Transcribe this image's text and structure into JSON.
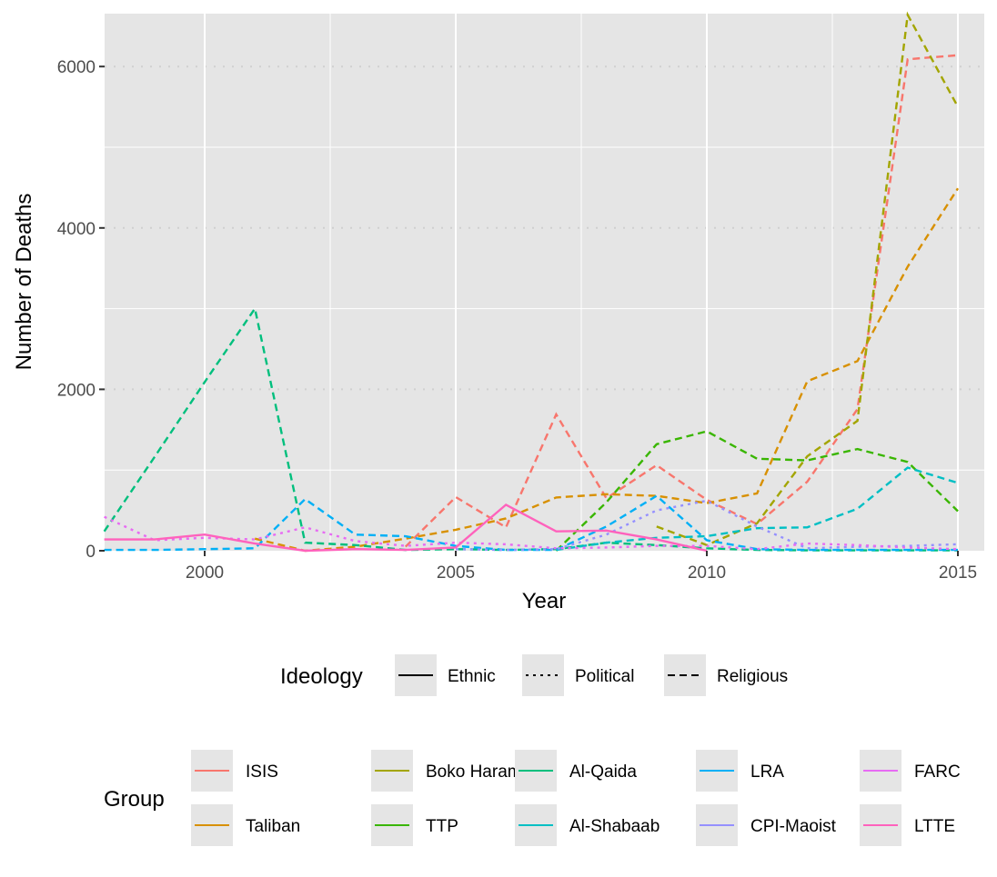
{
  "chart_data": {
    "type": "line",
    "title": "",
    "xlabel": "Year",
    "ylabel": "Number of Deaths",
    "xlim": [
      1998,
      2015.5
    ],
    "ylim": [
      0,
      6650
    ],
    "x_ticks": [
      2000,
      2005,
      2010,
      2015
    ],
    "y_ticks": [
      0,
      2000,
      4000,
      6000
    ],
    "grid": true,
    "legend_position": "bottom",
    "ideology_legend": {
      "title": "Ideology",
      "entries": [
        {
          "label": "Ethnic",
          "linetype": "solid"
        },
        {
          "label": "Political",
          "linetype": "dotted"
        },
        {
          "label": "Religious",
          "linetype": "dashed"
        }
      ]
    },
    "group_legend_title": "Group",
    "series": [
      {
        "name": "ISIS",
        "color": "#F8766D",
        "ideology": "Religious",
        "x": [
          2004,
          2005,
          2006,
          2007,
          2008,
          2009,
          2010,
          2011,
          2012,
          2013,
          2014,
          2015
        ],
        "values": [
          50,
          665,
          290,
          1690,
          650,
          1060,
          630,
          330,
          855,
          1755,
          6090,
          6140
        ]
      },
      {
        "name": "Taliban",
        "color": "#D89000",
        "ideology": "Religious",
        "x": [
          2001,
          2002,
          2003,
          2004,
          2005,
          2006,
          2007,
          2008,
          2009,
          2010,
          2011,
          2012,
          2013,
          2014,
          2015
        ],
        "values": [
          150,
          0,
          50,
          150,
          260,
          400,
          660,
          700,
          680,
          590,
          710,
          2100,
          2350,
          3520,
          4490
        ]
      },
      {
        "name": "Boko Haram",
        "color": "#A3A500",
        "ideology": "Religious",
        "x": [
          2009,
          2010,
          2011,
          2012,
          2013,
          2014,
          2015
        ],
        "values": [
          300,
          70,
          340,
          1170,
          1610,
          6640,
          5500
        ]
      },
      {
        "name": "TTP",
        "color": "#39B600",
        "ideology": "Religious",
        "x": [
          2007,
          2008,
          2009,
          2010,
          2011,
          2012,
          2013,
          2014,
          2015
        ],
        "values": [
          0,
          600,
          1320,
          1480,
          1140,
          1120,
          1260,
          1100,
          490
        ]
      },
      {
        "name": "Al-Qaida",
        "color": "#00BF7D",
        "ideology": "Religious",
        "x": [
          1998,
          1999,
          2000,
          2001,
          2002,
          2003,
          2004,
          2005,
          2006,
          2007,
          2008,
          2009,
          2010,
          2011,
          2012,
          2013,
          2014,
          2015
        ],
        "values": [
          240,
          1160,
          2090,
          3000,
          100,
          70,
          10,
          20,
          10,
          20,
          100,
          70,
          30,
          10,
          5,
          5,
          5,
          5
        ]
      },
      {
        "name": "Al-Shabaab",
        "color": "#00BFC4",
        "ideology": "Religious",
        "x": [
          2007,
          2008,
          2009,
          2010,
          2011,
          2012,
          2013,
          2014,
          2015
        ],
        "values": [
          10,
          100,
          160,
          180,
          280,
          290,
          520,
          1030,
          840
        ]
      },
      {
        "name": "LRA",
        "color": "#00B0F6",
        "ideology": "Religious",
        "x": [
          1998,
          1999,
          2000,
          2001,
          2002,
          2003,
          2004,
          2005,
          2006,
          2007,
          2008,
          2009,
          2010,
          2011,
          2012,
          2013,
          2014,
          2015
        ],
        "values": [
          10,
          10,
          20,
          30,
          640,
          200,
          180,
          60,
          10,
          10,
          300,
          680,
          130,
          20,
          10,
          10,
          10,
          10
        ]
      },
      {
        "name": "CPI-Maoist",
        "color": "#9590FF",
        "ideology": "Political",
        "x": [
          2005,
          2006,
          2007,
          2008,
          2009,
          2010,
          2011,
          2012,
          2013,
          2014,
          2015
        ],
        "values": [
          20,
          10,
          20,
          200,
          500,
          620,
          300,
          30,
          50,
          60,
          80
        ]
      },
      {
        "name": "FARC",
        "color": "#E76BF3",
        "ideology": "Political",
        "x": [
          1998,
          1999,
          2000,
          2001,
          2002,
          2003,
          2004,
          2005,
          2006,
          2007,
          2008,
          2009,
          2010,
          2011,
          2012,
          2013,
          2014,
          2015
        ],
        "values": [
          420,
          130,
          160,
          140,
          290,
          120,
          60,
          100,
          80,
          30,
          40,
          60,
          60,
          20,
          90,
          70,
          40,
          20
        ]
      },
      {
        "name": "LTTE",
        "color": "#FF62BC",
        "ideology": "Ethnic",
        "x": [
          1998,
          1999,
          2000,
          2001,
          2002,
          2003,
          2004,
          2005,
          2006,
          2007,
          2008,
          2009,
          2010
        ],
        "values": [
          140,
          140,
          200,
          90,
          0,
          20,
          10,
          40,
          570,
          240,
          250,
          140,
          0
        ]
      }
    ]
  }
}
